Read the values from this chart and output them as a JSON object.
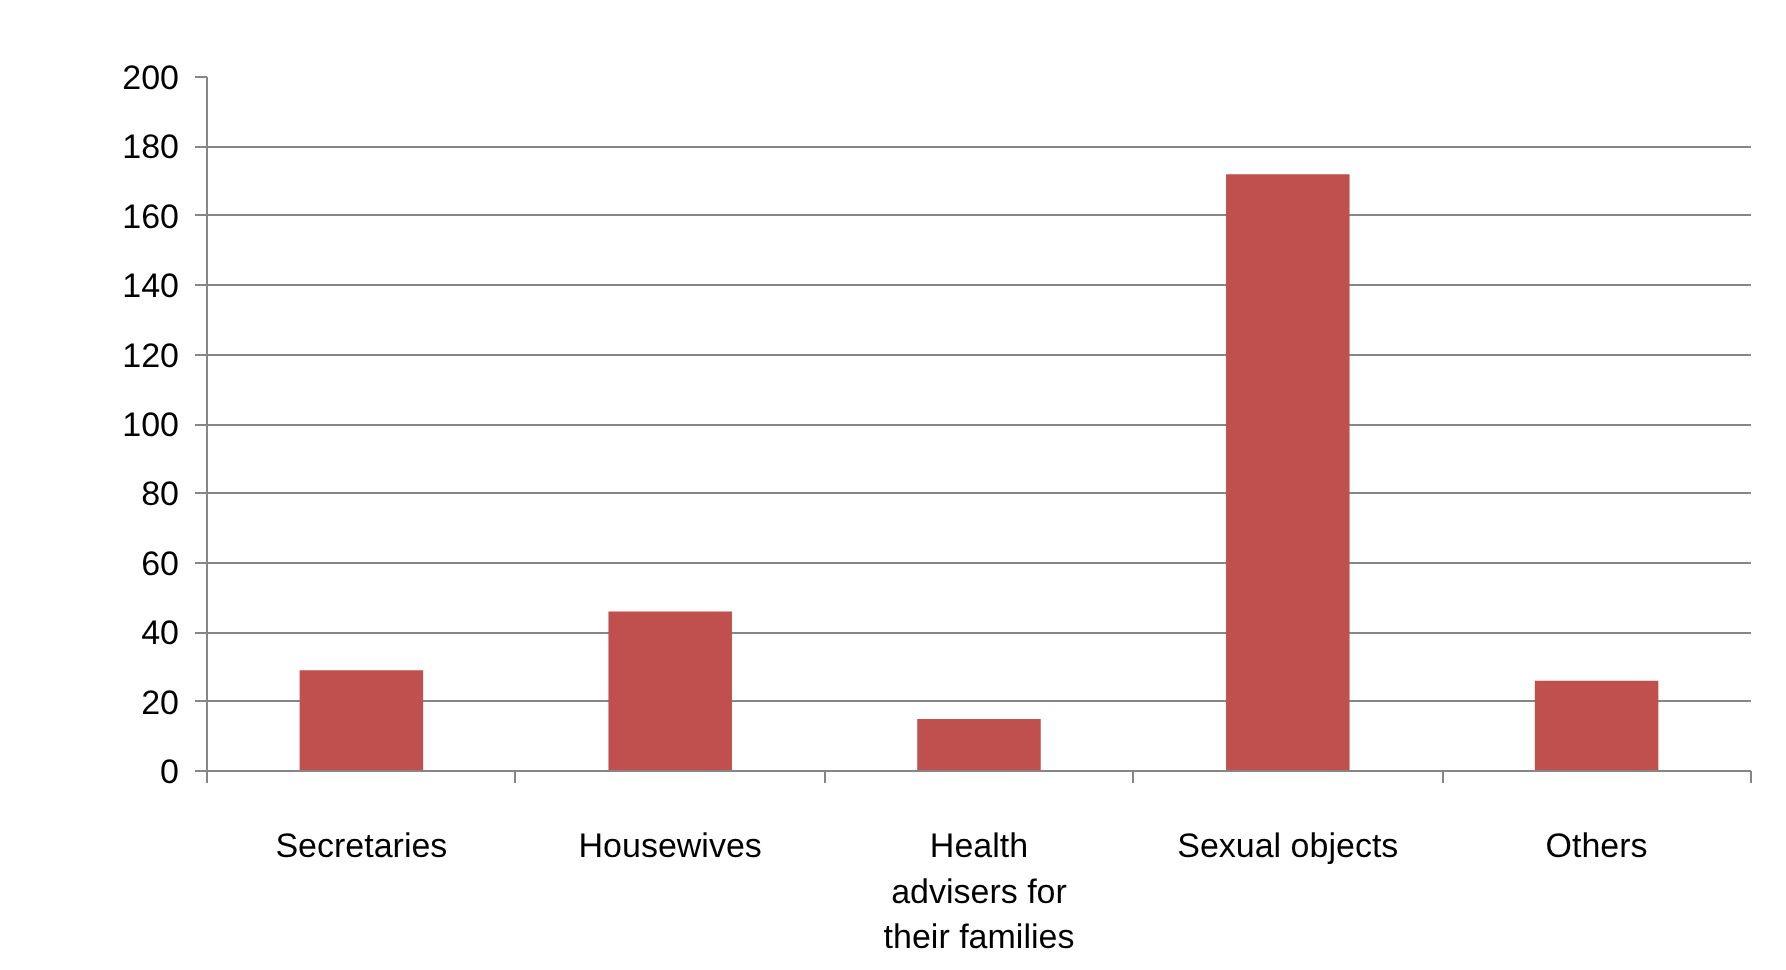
{
  "chart_data": {
    "type": "bar",
    "categories": [
      "Secretaries",
      "Housewives",
      "Health advisers for their families",
      "Sexual objects",
      "Others"
    ],
    "values": [
      29,
      46,
      15,
      172,
      26
    ],
    "color": "#c0504d",
    "ylim": [
      0,
      200
    ],
    "yticks": [
      0,
      20,
      40,
      60,
      80,
      100,
      120,
      140,
      160,
      180,
      200
    ],
    "grid": "y"
  }
}
